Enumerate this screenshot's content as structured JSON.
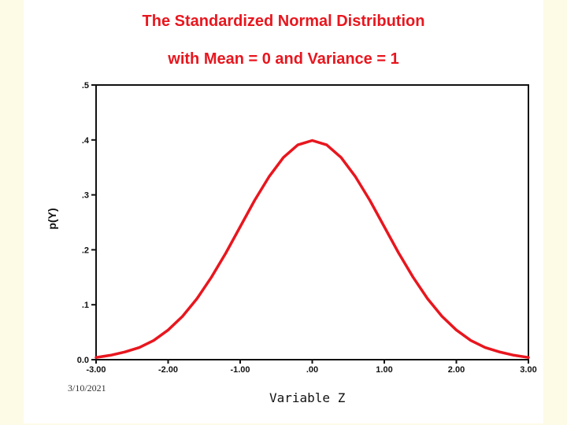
{
  "chart_data": {
    "type": "line",
    "title": "The Standardized Normal Distribution",
    "subtitle": "with Mean = 0 and Variance = 1",
    "xlabel": "Variable Z",
    "ylabel": "p(Y)",
    "xlim": [
      -3.0,
      3.0
    ],
    "ylim": [
      0.0,
      0.5
    ],
    "x_ticks": [
      -3,
      -2,
      -1,
      0,
      1,
      2,
      3
    ],
    "x_tick_labels": [
      "-3.00",
      "-2.00",
      "-1.00",
      ".00",
      "1.00",
      "2.00",
      "3.00"
    ],
    "y_ticks": [
      0,
      0.1,
      0.2,
      0.3,
      0.4,
      0.5
    ],
    "y_tick_labels": [
      "0.0",
      ".1",
      ".2",
      ".3",
      ".4",
      ".5"
    ],
    "grid": false,
    "series": [
      {
        "name": "p(Y)",
        "color": "#e8161e",
        "x": [
          -3.0,
          -2.8,
          -2.6,
          -2.4,
          -2.2,
          -2.0,
          -1.8,
          -1.6,
          -1.4,
          -1.2,
          -1.0,
          -0.8,
          -0.6,
          -0.4,
          -0.2,
          0.0,
          0.2,
          0.4,
          0.6,
          0.8,
          1.0,
          1.2,
          1.4,
          1.6,
          1.8,
          2.0,
          2.2,
          2.4,
          2.6,
          2.8,
          3.0
        ],
        "values": [
          0.004,
          0.008,
          0.014,
          0.022,
          0.035,
          0.054,
          0.079,
          0.111,
          0.15,
          0.194,
          0.242,
          0.29,
          0.333,
          0.368,
          0.391,
          0.399,
          0.391,
          0.368,
          0.333,
          0.29,
          0.242,
          0.194,
          0.15,
          0.111,
          0.079,
          0.054,
          0.035,
          0.022,
          0.014,
          0.008,
          0.004
        ]
      }
    ]
  },
  "footer": {
    "date": "3/10/2021"
  }
}
